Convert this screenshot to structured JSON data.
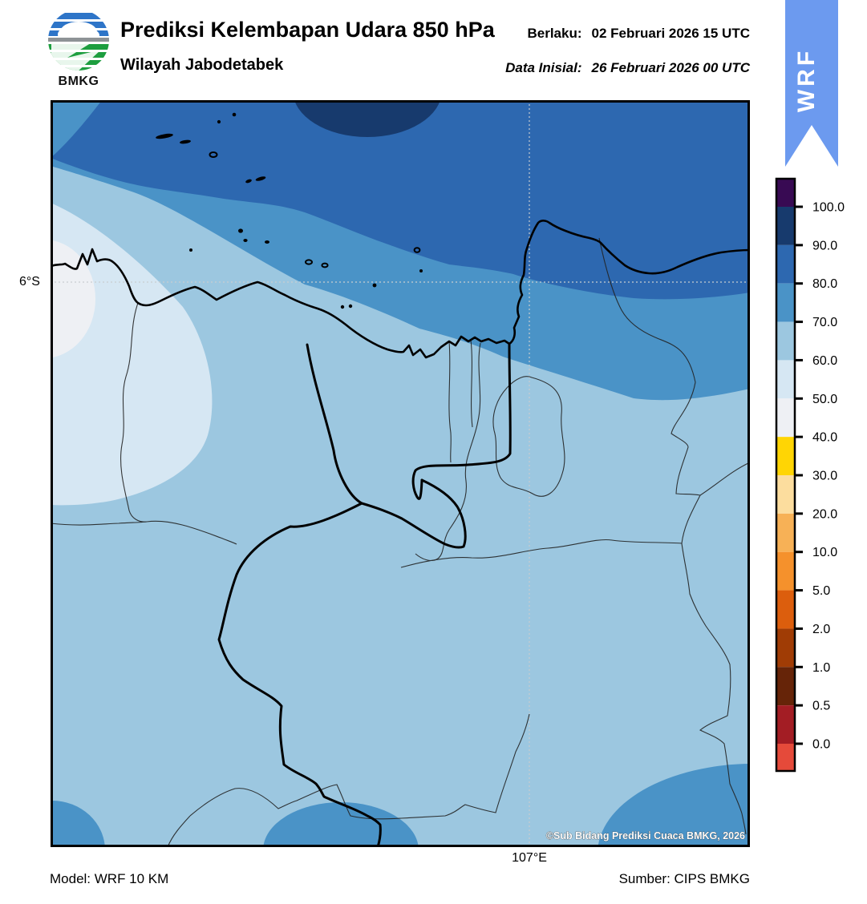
{
  "header": {
    "title": "Prediksi Kelembapan Udara 850 hPa",
    "subtitle": "Wilayah Jabodetabek",
    "valid": {
      "label": "Berlaku:",
      "value": "02 Februari 2026 15 UTC"
    },
    "initial": {
      "label": "Data Inisial:",
      "value": "26 Februari 2026 00 UTC"
    },
    "logo_text": "BMKG",
    "ribbon_label": "WRF",
    "ribbon_color": "#6c9aef"
  },
  "map": {
    "lat_tick": "6°S",
    "lon_tick": "107°E",
    "copyright": "©Sub Bidang Prediksi Cuaca BMKG, 2026",
    "band_fills": {
      "90-100": "#173a6d",
      "80-90": "#2d68b0",
      "70-80": "#4a93c7",
      "60-70": "#9cc7e0",
      "50-60": "#d6e7f3",
      "40-50": "#eef0f4"
    }
  },
  "colorbar": {
    "tick_labels": [
      "100.0",
      "90.0",
      "80.0",
      "70.0",
      "60.0",
      "50.0",
      "40.0",
      "30.0",
      "20.0",
      "10.0",
      "5.0",
      "2.0",
      "1.0",
      "0.5",
      "0.0"
    ],
    "segment_colors_top_to_bottom": [
      "#380a53",
      "#173a6d",
      "#2d68b0",
      "#4a93c7",
      "#9cc7e0",
      "#d6e7f3",
      "#eef0f4",
      "#ffd504",
      "#fcdd9e",
      "#f7b156",
      "#f5912c",
      "#dc5e0d",
      "#a03c05",
      "#662408",
      "#a31d24",
      "#e54a3a"
    ]
  },
  "footer": {
    "model": "Model: WRF 10 KM",
    "source": "Sumber: CIPS BMKG"
  }
}
